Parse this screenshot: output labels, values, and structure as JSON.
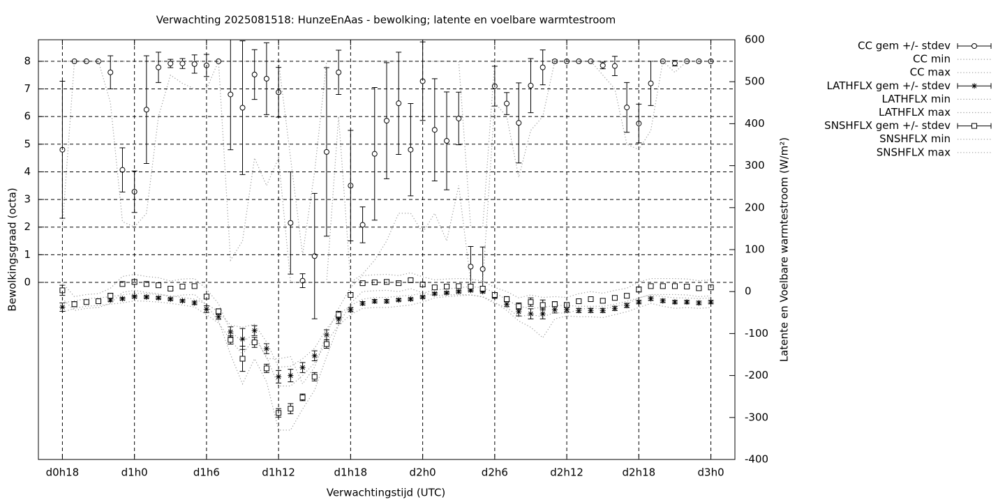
{
  "chart_data": {
    "type": "errorbar",
    "title": "Verwachting 2025081518: HunzeEnAas - bewolking; latente en voelbare warmtestroom",
    "xlabel": "Verwachtingstijd (UTC)",
    "ylabel": "Bewolkingsgraad (octa)",
    "y2label": "Latente en Voelbare warmtestroom (W/m²)",
    "grid": true,
    "legend": "outside-top-right",
    "x": [
      18,
      19,
      20,
      21,
      22,
      23,
      24,
      25,
      26,
      27,
      28,
      29,
      30,
      31,
      32,
      33,
      34,
      35,
      36,
      37,
      38,
      39,
      40,
      41,
      42,
      43,
      44,
      45,
      46,
      47,
      48,
      49,
      50,
      51,
      52,
      53,
      54,
      55,
      56,
      57,
      58,
      59,
      60,
      61,
      62,
      63,
      64,
      65,
      66,
      67,
      68,
      69,
      70,
      71,
      72
    ],
    "xlim": [
      16,
      74
    ],
    "xticks": [
      {
        "value": 18,
        "label": "d0h18"
      },
      {
        "value": 24,
        "label": "d1h0"
      },
      {
        "value": 30,
        "label": "d1h6"
      },
      {
        "value": 36,
        "label": "d1h12"
      },
      {
        "value": 42,
        "label": "d1h18"
      },
      {
        "value": 48,
        "label": "d2h0"
      },
      {
        "value": 54,
        "label": "d2h6"
      },
      {
        "value": 60,
        "label": "d2h12"
      },
      {
        "value": 66,
        "label": "d2h18"
      },
      {
        "value": 72,
        "label": "d3h0"
      }
    ],
    "ylim": [
      -6.41,
      8.78
    ],
    "yticks": [
      0,
      1,
      2,
      3,
      4,
      5,
      6,
      7,
      8
    ],
    "y2lim": [
      -400,
      600
    ],
    "y2ticks": [
      -400,
      -300,
      -200,
      -100,
      0,
      100,
      200,
      300,
      400,
      500,
      600
    ],
    "series": [
      {
        "name": "CC gem +/- stdev",
        "style": "errorbars",
        "marker": "circle",
        "color": "#000000",
        "values": [
          4.8,
          8,
          8,
          8,
          7.6,
          4.07,
          3.28,
          6.25,
          7.78,
          7.92,
          7.92,
          7.9,
          7.85,
          8,
          6.8,
          6.32,
          7.52,
          7.37,
          6.88,
          2.15,
          0.06,
          0.95,
          4.72,
          7.6,
          3.5,
          2.08,
          4.65,
          5.85,
          6.48,
          4.8,
          7.28,
          5.52,
          5.12,
          5.93,
          0.57,
          0.48,
          7.1,
          6.47,
          5.77,
          7.12,
          7.78,
          8,
          8,
          8,
          8,
          7.85,
          7.83,
          6.33,
          5.75,
          7.2,
          8,
          7.93,
          8,
          8,
          8
        ],
        "errors": [
          2.48,
          0,
          0,
          0,
          0.6,
          0.8,
          0.75,
          1.95,
          0.55,
          0.15,
          0.18,
          0.33,
          0.4,
          0,
          2.0,
          2.42,
          0.9,
          1.3,
          0.9,
          1.85,
          0.25,
          2.27,
          3.05,
          0.8,
          2.0,
          0.65,
          2.4,
          2.1,
          1.85,
          1.67,
          1.42,
          1.85,
          1.77,
          0.95,
          0.73,
          0.8,
          0.72,
          0.4,
          1.45,
          0.98,
          0.63,
          0.05,
          0,
          0,
          0,
          0.12,
          0.35,
          0.9,
          0.7,
          0.8,
          0,
          0.1,
          0,
          0,
          0
        ]
      },
      {
        "name": "CC min",
        "style": "line",
        "color": "#999999",
        "values": [
          2.0,
          8,
          8,
          8,
          6.5,
          2.2,
          2.0,
          2.5,
          6,
          7.5,
          7.2,
          7,
          7,
          8,
          0.8,
          1.5,
          4.5,
          3.5,
          4.5,
          0,
          0,
          0,
          0,
          6,
          0,
          0.3,
          0.8,
          1.5,
          2.5,
          2.5,
          1.8,
          2.5,
          1.5,
          3.5,
          0,
          0,
          6.5,
          6.0,
          3.8,
          5.5,
          6,
          8,
          8,
          8,
          8,
          7.5,
          7,
          5,
          4.8,
          5.5,
          8,
          7.6,
          8,
          8,
          8
        ]
      },
      {
        "name": "CC max",
        "style": "line",
        "color": "#999999",
        "values": [
          8,
          8,
          8,
          8,
          8,
          8,
          8,
          8,
          8,
          8,
          8,
          8,
          8,
          8,
          8,
          8,
          8,
          8,
          8,
          4.5,
          1,
          4,
          8,
          8,
          8,
          8,
          8,
          8,
          8,
          8,
          8,
          8,
          8,
          8,
          2,
          2,
          8,
          8,
          8,
          8,
          8,
          8,
          8,
          8,
          8,
          8,
          8,
          8,
          8,
          8,
          8,
          8,
          8,
          8,
          8
        ]
      },
      {
        "name": "LATHFLX gem +/- stdev",
        "style": "errorbars",
        "marker": "star",
        "axis": "y2",
        "color": "#000000",
        "values": [
          -37,
          -30,
          -25,
          -23,
          -20,
          -17,
          -12,
          -13,
          -15,
          -18,
          -22,
          -27,
          -42,
          -60,
          -96,
          -113,
          -93,
          -136,
          -203,
          -200,
          -181,
          -153,
          -103,
          -66,
          -43,
          -28,
          -23,
          -23,
          -20,
          -18,
          -13,
          -5,
          -3,
          0,
          3,
          0,
          -12,
          -30,
          -48,
          -53,
          -53,
          -43,
          -43,
          -45,
          -45,
          -45,
          -40,
          -33,
          -25,
          -17,
          -22,
          -25,
          -25,
          -27,
          -25
        ],
        "errors": [
          10,
          5,
          4,
          4,
          4,
          3,
          3,
          3,
          3,
          3,
          3,
          4,
          8,
          6,
          12,
          25,
          12,
          12,
          15,
          15,
          12,
          12,
          12,
          10,
          5,
          4,
          4,
          4,
          3,
          3,
          3,
          3,
          3,
          3,
          3,
          3,
          4,
          6,
          10,
          12,
          12,
          8,
          6,
          5,
          5,
          5,
          5,
          5,
          4,
          4,
          4,
          4,
          4,
          4,
          4
        ]
      },
      {
        "name": "LATHFLX min",
        "style": "line",
        "axis": "y2",
        "color": "#999999",
        "values": [
          -49,
          -40,
          -35,
          -33,
          -30,
          -27,
          -22,
          -23,
          -25,
          -28,
          -32,
          -37,
          -55,
          -75,
          -115,
          -150,
          -110,
          -155,
          -225,
          -225,
          -200,
          -170,
          -120,
          -80,
          -55,
          -40,
          -38,
          -38,
          -35,
          -32,
          -25,
          -15,
          -12,
          -10,
          -8,
          -12,
          -25,
          -45,
          -70,
          -85,
          -110,
          -65,
          -58,
          -60,
          -60,
          -62,
          -55,
          -48,
          -38,
          -28,
          -35,
          -40,
          -38,
          -40,
          -38
        ]
      },
      {
        "name": "LATHFLX max",
        "style": "line",
        "axis": "y2",
        "color": "#999999",
        "values": [
          -27,
          -22,
          -17,
          -15,
          -12,
          -8,
          -4,
          -5,
          -7,
          -10,
          -14,
          -18,
          -30,
          -48,
          -80,
          -85,
          -78,
          -120,
          -180,
          -178,
          -160,
          -135,
          -88,
          -55,
          -33,
          -18,
          -14,
          -14,
          -11,
          -9,
          -4,
          4,
          6,
          9,
          12,
          9,
          -2,
          -20,
          -35,
          -40,
          -38,
          -33,
          -33,
          -35,
          -35,
          -35,
          -30,
          -23,
          -15,
          -8,
          -12,
          -15,
          -15,
          -17,
          -15
        ]
      },
      {
        "name": "SNSHFLX gem +/- stdev",
        "style": "errorbars",
        "marker": "square",
        "axis": "y2",
        "color": "#000000",
        "values": [
          3,
          -30,
          -25,
          -23,
          -10,
          18,
          23,
          18,
          15,
          7,
          12,
          13,
          -12,
          -47,
          -115,
          -160,
          -121,
          -183,
          -289,
          -279,
          -252,
          -203,
          -125,
          -55,
          -8,
          20,
          22,
          23,
          20,
          27,
          17,
          10,
          12,
          13,
          12,
          7,
          -8,
          -18,
          -35,
          -25,
          -32,
          -30,
          -32,
          -23,
          -18,
          -22,
          -15,
          -10,
          5,
          13,
          13,
          13,
          12,
          8,
          10
        ],
        "errors": [
          12,
          6,
          4,
          4,
          6,
          4,
          4,
          4,
          4,
          4,
          4,
          4,
          5,
          6,
          10,
          30,
          12,
          10,
          10,
          12,
          8,
          10,
          10,
          8,
          5,
          4,
          4,
          4,
          4,
          4,
          4,
          4,
          4,
          4,
          4,
          4,
          5,
          6,
          8,
          10,
          12,
          6,
          6,
          5,
          5,
          5,
          5,
          5,
          6,
          4,
          4,
          4,
          4,
          4,
          4
        ]
      },
      {
        "name": "SNSHFLX min",
        "style": "line",
        "axis": "y2",
        "color": "#999999",
        "values": [
          -17,
          -45,
          -40,
          -38,
          -28,
          -2,
          3,
          -2,
          -5,
          -13,
          -8,
          -7,
          -32,
          -70,
          -150,
          -220,
          -160,
          -215,
          -330,
          -330,
          -280,
          -235,
          -155,
          -80,
          -28,
          0,
          2,
          3,
          0,
          7,
          -3,
          -10,
          -8,
          -7,
          -8,
          -13,
          -28,
          -38,
          -60,
          -55,
          -60,
          -50,
          -52,
          -43,
          -38,
          -42,
          -35,
          -30,
          -15,
          -7,
          -7,
          -7,
          -8,
          -12,
          -10
        ]
      },
      {
        "name": "SNSHFLX max",
        "style": "line",
        "axis": "y2",
        "color": "#999999",
        "values": [
          21,
          -12,
          -7,
          -5,
          8,
          36,
          41,
          36,
          33,
          25,
          30,
          31,
          6,
          -29,
          -95,
          -120,
          -100,
          -160,
          -160,
          -155,
          -220,
          -180,
          -100,
          -40,
          10,
          38,
          40,
          41,
          38,
          45,
          35,
          28,
          30,
          31,
          30,
          25,
          10,
          0,
          -15,
          -8,
          -14,
          -12,
          -14,
          -5,
          0,
          -4,
          3,
          8,
          23,
          31,
          31,
          31,
          30,
          26,
          28
        ]
      }
    ]
  }
}
